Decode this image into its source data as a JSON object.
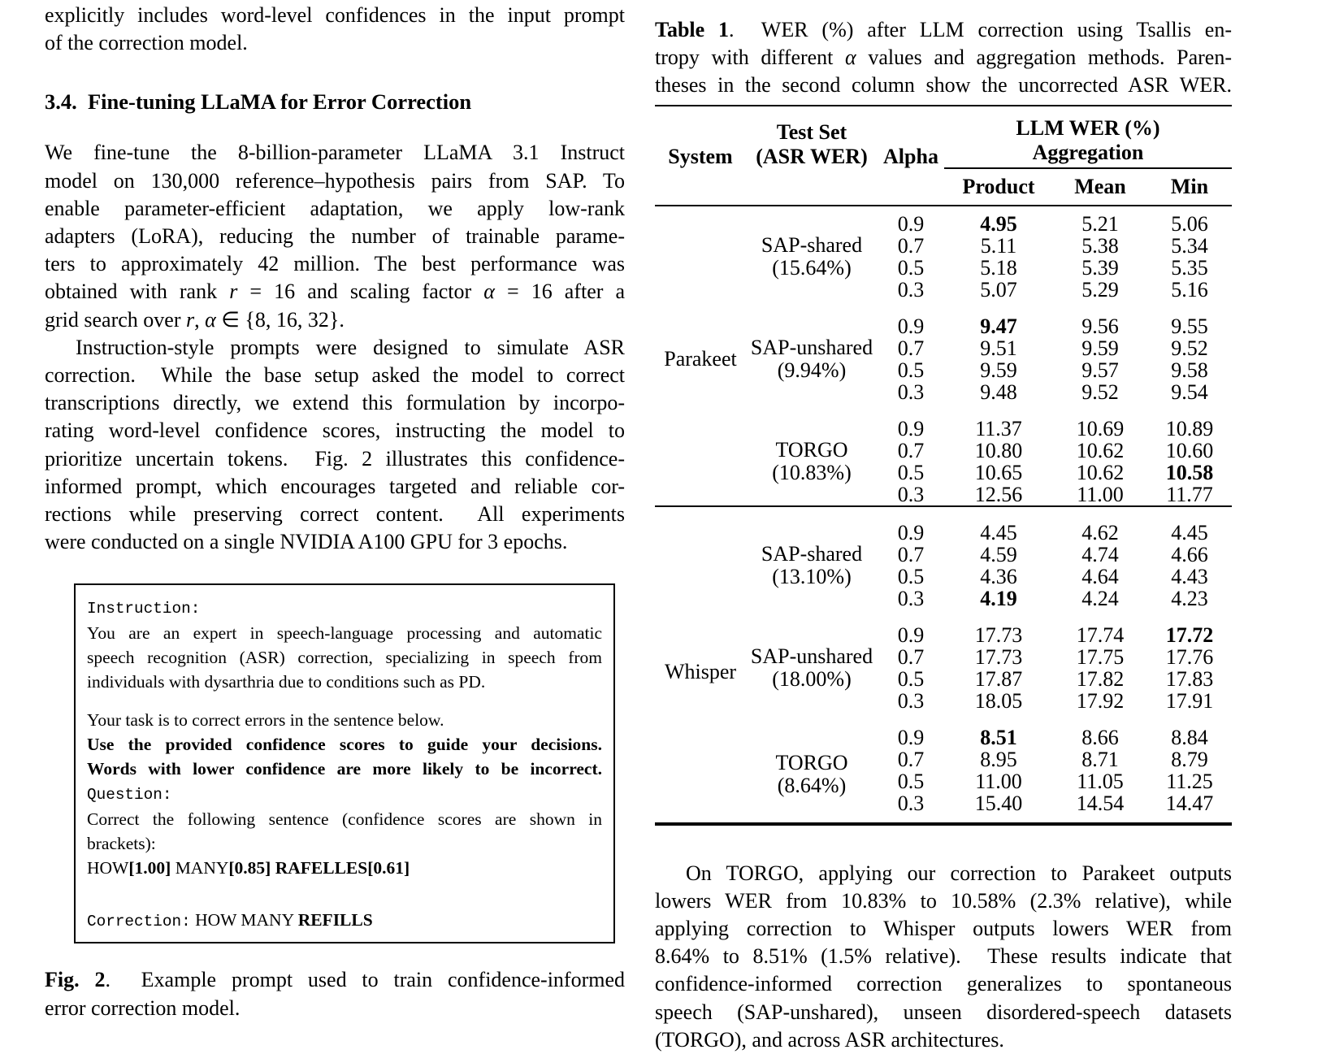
{
  "left_column": {
    "intro_lines": [
      {
        "segs": [
          {
            "t": "explicitly includes word-level confidences in the input prompt"
          }
        ]
      },
      {
        "segs": [
          {
            "t": "of the correction model."
          }
        ],
        "nj": 1
      }
    ],
    "section_heading": "3.4.  Fine-tuning LLaMA for Error Correction",
    "para_finetune_lines": [
      {
        "segs": [
          {
            "t": "We fine-tune the 8-billion-parameter LLaMA 3.1 Instruct"
          }
        ]
      },
      {
        "segs": [
          {
            "t": "model on 130,000 reference–hypothesis pairs from SAP. To"
          }
        ]
      },
      {
        "segs": [
          {
            "t": "enable parameter-efficient adaptation, we apply low-rank"
          }
        ]
      },
      {
        "segs": [
          {
            "t": "adapters (LoRA), reducing the number of trainable parame-"
          }
        ]
      },
      {
        "segs": [
          {
            "t": "ters to approximately 42 million. The best performance was"
          }
        ]
      },
      {
        "segs": [
          {
            "t": "obtained with rank "
          },
          {
            "t": "r",
            "i": 1
          },
          {
            "t": " = 16 and scaling factor "
          },
          {
            "t": "α",
            "i": 1
          },
          {
            "t": " = 16 after a"
          }
        ]
      },
      {
        "segs": [
          {
            "t": "grid search over "
          },
          {
            "t": "r",
            "i": 1
          },
          {
            "t": ", "
          },
          {
            "t": "α",
            "i": 1
          },
          {
            "t": " ∈ {8, 16, 32}."
          }
        ],
        "nj": 1
      }
    ],
    "para_prompts_lines": [
      {
        "segs": [
          {
            "t": "Instruction-style prompts were designed to simulate ASR"
          }
        ],
        "ind": 1
      },
      {
        "segs": [
          {
            "t": "correction.  While the base setup asked the model to correct"
          }
        ]
      },
      {
        "segs": [
          {
            "t": "transcriptions directly, we extend this formulation by incorpo-"
          }
        ]
      },
      {
        "segs": [
          {
            "t": "rating word-level confidence scores, instructing the model to"
          }
        ]
      },
      {
        "segs": [
          {
            "t": "prioritize uncertain tokens.  Fig. 2 illustrates this confidence-"
          }
        ]
      },
      {
        "segs": [
          {
            "t": "informed prompt, which encourages targeted and reliable cor-"
          }
        ]
      },
      {
        "segs": [
          {
            "t": "rections while preserving correct content.  All experiments"
          }
        ]
      },
      {
        "segs": [
          {
            "t": "were conducted on a single NVIDIA A100 GPU for 3 epochs."
          }
        ],
        "nj": 1
      }
    ],
    "figure2": {
      "box_lines": [
        {
          "segs": [
            {
              "t": "Instruction:",
              "m": 1
            }
          ],
          "nj": 1
        },
        {
          "segs": [
            {
              "t": "You are an expert in speech-language processing and automatic"
            }
          ]
        },
        {
          "segs": [
            {
              "t": "speech recognition (ASR) correction, specializing in speech from"
            }
          ]
        },
        {
          "segs": [
            {
              "t": "individuals with dysarthria due to conditions such as PD."
            }
          ],
          "nj": 1
        },
        {
          "blank": 1
        },
        {
          "segs": [
            {
              "t": "Your task is to correct errors in the sentence below."
            }
          ],
          "nj": 1
        },
        {
          "segs": [
            {
              "t": "Use the provided confidence scores to guide your decisions.",
              "b": 1
            }
          ]
        },
        {
          "segs": [
            {
              "t": "Words with lower confidence are more likely to be incorrect.",
              "b": 1
            }
          ]
        },
        {
          "segs": [
            {
              "t": "Question:",
              "m": 1
            }
          ],
          "nj": 1
        },
        {
          "segs": [
            {
              "t": "Correct the following sentence (confidence scores are shown in"
            }
          ]
        },
        {
          "segs": [
            {
              "t": "brackets):"
            }
          ],
          "nj": 1
        },
        {
          "segs": [
            {
              "t": "HOW"
            },
            {
              "t": "[1.00]",
              "b": 1
            },
            {
              "t": " MANY"
            },
            {
              "t": "[0.85]",
              "b": 1
            },
            {
              "t": " "
            },
            {
              "t": "RAFELLES[0.61]",
              "b": 1
            }
          ],
          "nj": 1
        },
        {
          "blank": 1
        },
        {
          "blank": 1
        },
        {
          "segs": [
            {
              "t": "Correction:",
              "m": 1
            },
            {
              "t": " HOW MANY "
            },
            {
              "t": "REFILLS",
              "b": 1
            }
          ],
          "nj": 1
        }
      ],
      "caption_lines": [
        {
          "segs": [
            {
              "t": "Fig. 2",
              "b": 1
            },
            {
              "t": ".  Example prompt used to train confidence-informed"
            }
          ]
        },
        {
          "segs": [
            {
              "t": "error correction model."
            }
          ],
          "nj": 1
        }
      ]
    }
  },
  "right_column": {
    "table1": {
      "caption_lines": [
        {
          "segs": [
            {
              "t": "Table 1",
              "b": 1
            },
            {
              "t": ".  WER (%) after LLM correction using Tsallis en-"
            }
          ]
        },
        {
          "segs": [
            {
              "t": "tropy with different "
            },
            {
              "t": "α",
              "i": 1
            },
            {
              "t": " values and aggregation methods. Paren-"
            }
          ]
        },
        {
          "segs": [
            {
              "t": "theses in the second column show the uncorrected ASR WER."
            }
          ]
        }
      ],
      "header": {
        "system": "System",
        "test_set_line1": "Test Set",
        "test_set_line2": "(ASR WER)",
        "alpha": "Alpha",
        "llm_line1": "LLM WER (%)",
        "llm_line2": "Aggregation",
        "sub": [
          "Product",
          "Mean",
          "Min"
        ]
      },
      "systems": [
        {
          "name": "Parakeet",
          "test_sets": [
            {
              "name": "SAP-shared",
              "asr_wer": "(15.64%)",
              "rows": [
                {
                  "alpha": "0.9",
                  "product": "4.95",
                  "mean": "5.21",
                  "min": "5.06",
                  "bold": "product"
                },
                {
                  "alpha": "0.7",
                  "product": "5.11",
                  "mean": "5.38",
                  "min": "5.34"
                },
                {
                  "alpha": "0.5",
                  "product": "5.18",
                  "mean": "5.39",
                  "min": "5.35"
                },
                {
                  "alpha": "0.3",
                  "product": "5.07",
                  "mean": "5.29",
                  "min": "5.16"
                }
              ]
            },
            {
              "name": "SAP-unshared",
              "asr_wer": "(9.94%)",
              "rows": [
                {
                  "alpha": "0.9",
                  "product": "9.47",
                  "mean": "9.56",
                  "min": "9.55",
                  "bold": "product"
                },
                {
                  "alpha": "0.7",
                  "product": "9.51",
                  "mean": "9.59",
                  "min": "9.52"
                },
                {
                  "alpha": "0.5",
                  "product": "9.59",
                  "mean": "9.57",
                  "min": "9.58"
                },
                {
                  "alpha": "0.3",
                  "product": "9.48",
                  "mean": "9.52",
                  "min": "9.54"
                }
              ]
            },
            {
              "name": "TORGO",
              "asr_wer": "(10.83%)",
              "rows": [
                {
                  "alpha": "0.9",
                  "product": "11.37",
                  "mean": "10.69",
                  "min": "10.89"
                },
                {
                  "alpha": "0.7",
                  "product": "10.80",
                  "mean": "10.62",
                  "min": "10.60"
                },
                {
                  "alpha": "0.5",
                  "product": "10.65",
                  "mean": "10.62",
                  "min": "10.58",
                  "bold": "min"
                },
                {
                  "alpha": "0.3",
                  "product": "12.56",
                  "mean": "11.00",
                  "min": "11.77"
                }
              ]
            }
          ]
        },
        {
          "name": "Whisper",
          "test_sets": [
            {
              "name": "SAP-shared",
              "asr_wer": "(13.10%)",
              "rows": [
                {
                  "alpha": "0.9",
                  "product": "4.45",
                  "mean": "4.62",
                  "min": "4.45"
                },
                {
                  "alpha": "0.7",
                  "product": "4.59",
                  "mean": "4.74",
                  "min": "4.66"
                },
                {
                  "alpha": "0.5",
                  "product": "4.36",
                  "mean": "4.64",
                  "min": "4.43"
                },
                {
                  "alpha": "0.3",
                  "product": "4.19",
                  "mean": "4.24",
                  "min": "4.23",
                  "bold": "product"
                }
              ]
            },
            {
              "name": "SAP-unshared",
              "asr_wer": "(18.00%)",
              "rows": [
                {
                  "alpha": "0.9",
                  "product": "17.73",
                  "mean": "17.74",
                  "min": "17.72",
                  "bold": "min"
                },
                {
                  "alpha": "0.7",
                  "product": "17.73",
                  "mean": "17.75",
                  "min": "17.76"
                },
                {
                  "alpha": "0.5",
                  "product": "17.87",
                  "mean": "17.82",
                  "min": "17.83"
                },
                {
                  "alpha": "0.3",
                  "product": "18.05",
                  "mean": "17.92",
                  "min": "17.91"
                }
              ]
            },
            {
              "name": "TORGO",
              "asr_wer": "(8.64%)",
              "rows": [
                {
                  "alpha": "0.9",
                  "product": "8.51",
                  "mean": "8.66",
                  "min": "8.84",
                  "bold": "product"
                },
                {
                  "alpha": "0.7",
                  "product": "8.95",
                  "mean": "8.71",
                  "min": "8.79"
                },
                {
                  "alpha": "0.5",
                  "product": "11.00",
                  "mean": "11.05",
                  "min": "11.25"
                },
                {
                  "alpha": "0.3",
                  "product": "15.40",
                  "mean": "14.54",
                  "min": "14.47"
                }
              ]
            }
          ]
        }
      ]
    },
    "para_torgo_lines": [
      {
        "segs": [
          {
            "t": "On TORGO, applying our correction to Parakeet outputs"
          }
        ],
        "ind": 1
      },
      {
        "segs": [
          {
            "t": "lowers WER from 10.83% to 10.58% (2.3% relative), while"
          }
        ]
      },
      {
        "segs": [
          {
            "t": "applying correction to Whisper outputs lowers WER from"
          }
        ]
      },
      {
        "segs": [
          {
            "t": "8.64% to 8.51% (1.5% relative).  These results indicate that"
          }
        ]
      },
      {
        "segs": [
          {
            "t": "confidence-informed correction generalizes to spontaneous"
          }
        ]
      },
      {
        "segs": [
          {
            "t": "speech (SAP-unshared), unseen disordered-speech datasets"
          }
        ]
      },
      {
        "segs": [
          {
            "t": "(TORGO), and across ASR architectures."
          }
        ],
        "nj": 1
      }
    ]
  }
}
